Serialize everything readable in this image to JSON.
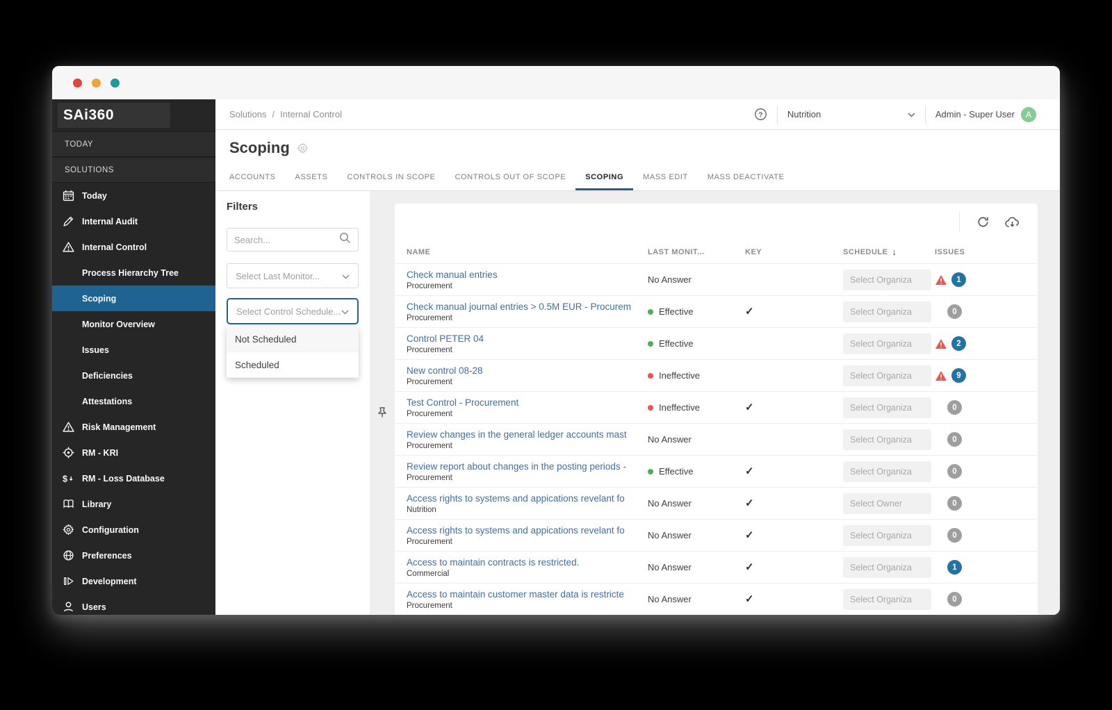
{
  "sidebar": {
    "logo": "SAi360",
    "sections": [
      "TODAY",
      "SOLUTIONS"
    ],
    "items": [
      {
        "label": "Today",
        "icon": "calendar-icon"
      },
      {
        "label": "Internal Audit",
        "icon": "pencil-icon"
      },
      {
        "label": "Internal Control",
        "icon": "alert-triangle-icon"
      },
      {
        "label": "Process Hierarchy Tree",
        "indent": true
      },
      {
        "label": "Scoping",
        "indent": true,
        "active": true
      },
      {
        "label": "Monitor Overview",
        "indent": true
      },
      {
        "label": "Issues",
        "indent": true
      },
      {
        "label": "Deficiencies",
        "indent": true
      },
      {
        "label": "Attestations",
        "indent": true
      },
      {
        "label": "Risk Management",
        "icon": "alert-triangle-icon"
      },
      {
        "label": "RM - KRI",
        "icon": "target-icon"
      },
      {
        "label": "RM - Loss Database",
        "icon": "dollar-icon"
      },
      {
        "label": "Library",
        "icon": "library-icon"
      },
      {
        "label": "Configuration",
        "icon": "gear-icon"
      },
      {
        "label": "Preferences",
        "icon": "globe-icon"
      },
      {
        "label": "Development",
        "icon": "development-icon"
      },
      {
        "label": "Users",
        "icon": "user-icon"
      }
    ]
  },
  "header": {
    "breadcrumb": [
      "Solutions",
      "Internal Control"
    ],
    "breadcrumb_separator": "/",
    "context_selector": "Nutrition",
    "user_name": "Admin - Super User",
    "avatar_initial": "A"
  },
  "page": {
    "title": "Scoping"
  },
  "tabs": [
    {
      "label": "ACCOUNTS"
    },
    {
      "label": "ASSETS"
    },
    {
      "label": "CONTROLS IN SCOPE"
    },
    {
      "label": "CONTROLS OUT OF SCOPE"
    },
    {
      "label": "SCOPING",
      "active": true
    },
    {
      "label": "MASS EDIT"
    },
    {
      "label": "MASS DEACTIVATE"
    }
  ],
  "filters": {
    "title": "Filters",
    "search_placeholder": "Search...",
    "last_monitor_placeholder": "Select Last Monitor...",
    "schedule_placeholder": "Select Control Schedule...",
    "schedule_options": [
      "Not Scheduled",
      "Scheduled"
    ]
  },
  "table": {
    "columns": [
      "NAME",
      "LAST MONIT...",
      "KEY",
      "SCHEDULE",
      "ISSUES"
    ],
    "rows": [
      {
        "name": "Check manual entries",
        "category": "Procurement",
        "monitor": "No Answer",
        "status": "none",
        "key": false,
        "schedule": "Select Organiza",
        "warning": true,
        "issues": "1",
        "badge": "blue"
      },
      {
        "name": "Check manual journal entries > 0.5M EUR - Procurem",
        "category": "Procurement",
        "monitor": "Effective",
        "status": "effective",
        "key": true,
        "schedule": "Select Organiza",
        "warning": false,
        "issues": "0",
        "badge": "grey"
      },
      {
        "name": "Control PETER 04",
        "category": "Procurement",
        "monitor": "Effective",
        "status": "effective",
        "key": false,
        "schedule": "Select Organiza",
        "warning": true,
        "issues": "2",
        "badge": "blue"
      },
      {
        "name": "New control 08-28",
        "category": "Procurement",
        "monitor": "Ineffective",
        "status": "ineffective",
        "key": false,
        "schedule": "Select Organiza",
        "warning": true,
        "issues": "9",
        "badge": "blue"
      },
      {
        "name": "Test Control - Procurement",
        "category": "Procurement",
        "monitor": "Ineffective",
        "status": "ineffective",
        "key": true,
        "schedule": "Select Organiza",
        "warning": false,
        "issues": "0",
        "badge": "grey"
      },
      {
        "name": "Review changes in the general ledger accounts mast",
        "category": "Procurement",
        "monitor": "No Answer",
        "status": "none",
        "key": false,
        "schedule": "Select Organiza",
        "warning": false,
        "issues": "0",
        "badge": "grey"
      },
      {
        "name": "Review report about changes in the posting periods -",
        "category": "Procurement",
        "monitor": "Effective",
        "status": "effective",
        "key": true,
        "schedule": "Select Organiza",
        "warning": false,
        "issues": "0",
        "badge": "grey"
      },
      {
        "name": "Access rights to systems and appications revelant fo",
        "category": "Nutrition",
        "monitor": "No Answer",
        "status": "none",
        "key": true,
        "schedule": "Select Owner",
        "warning": false,
        "issues": "0",
        "badge": "grey"
      },
      {
        "name": "Access rights to systems and appications revelant fo",
        "category": "Procurement",
        "monitor": "No Answer",
        "status": "none",
        "key": true,
        "schedule": "Select Organiza",
        "warning": false,
        "issues": "0",
        "badge": "grey"
      },
      {
        "name": "Access to maintain contracts is restricted.",
        "category": "Commercial",
        "monitor": "No Answer",
        "status": "none",
        "key": true,
        "schedule": "Select Organiza",
        "warning": false,
        "issues": "1",
        "badge": "blue"
      },
      {
        "name": "Access to maintain customer master data is restricte",
        "category": "Procurement",
        "monitor": "No Answer",
        "status": "none",
        "key": true,
        "schedule": "Select Organiza",
        "warning": false,
        "issues": "0",
        "badge": "grey"
      }
    ]
  },
  "icons": {
    "sort_desc": "↓",
    "key_check": "✓"
  },
  "colors": {
    "accent_blue": "#1e6391",
    "badge_blue": "#2272a4",
    "badge_grey": "#9e9e9e",
    "warning_red": "#e8564e",
    "effective_green": "#4caf50",
    "ineffective_red": "#ef5350",
    "link_blue": "#3c70a4",
    "avatar_green": "#85cc96",
    "traffic_red": "#e0443a",
    "traffic_yellow": "#f0a23b",
    "traffic_teal": "#1a9b9b"
  }
}
